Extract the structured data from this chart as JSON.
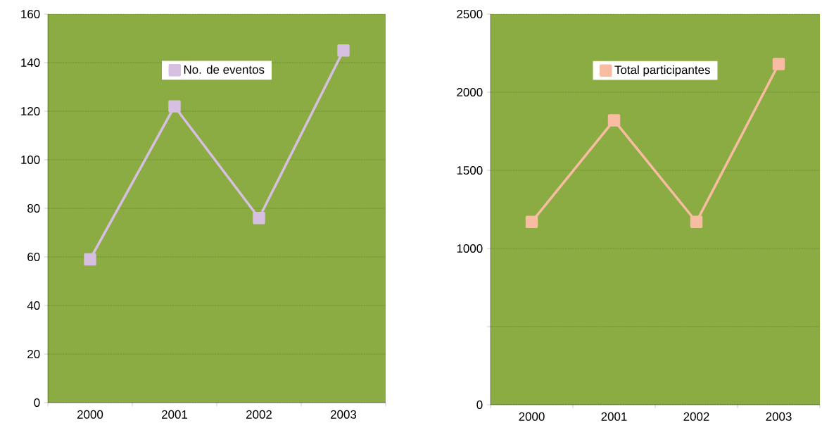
{
  "chart_data": [
    {
      "type": "line",
      "categories": [
        "2000",
        "2001",
        "2002",
        "2003"
      ],
      "series": [
        {
          "name": "No. de eventos",
          "color": "#d6bfe0",
          "values": [
            59,
            122,
            76,
            145
          ]
        }
      ],
      "ylim": [
        0,
        160
      ],
      "yticks": [
        0,
        20,
        40,
        60,
        80,
        100,
        120,
        140,
        160
      ],
      "grid": "y",
      "legend": "top",
      "marker": "square"
    },
    {
      "type": "line",
      "categories": [
        "2000",
        "2001",
        "2002",
        "2003"
      ],
      "series": [
        {
          "name": "Total participantes",
          "color": "#f8bca2",
          "values": [
            1170,
            1820,
            1170,
            2180
          ]
        }
      ],
      "ylim": [
        0,
        2500
      ],
      "yticks": [
        0,
        {
          "value": 500,
          "label": null
        },
        1000,
        1500,
        2000,
        2500
      ],
      "grid": "y",
      "legend": "top",
      "marker": "square"
    }
  ]
}
